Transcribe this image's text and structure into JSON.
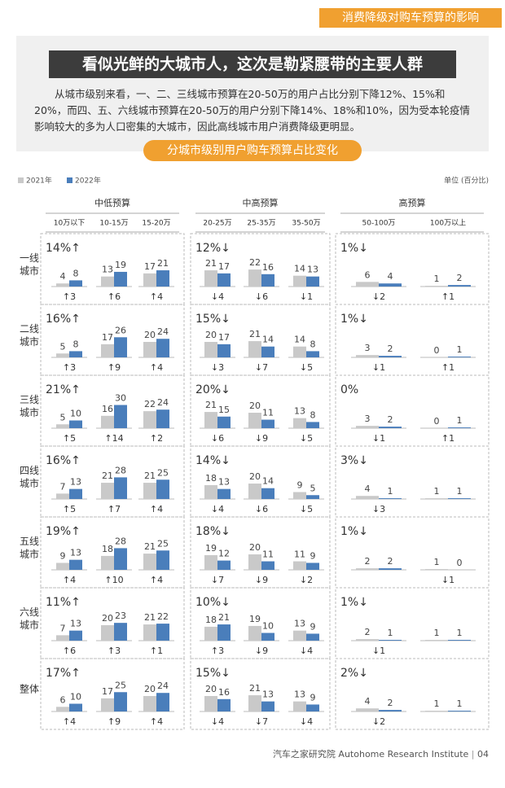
{
  "header": "消费降级对购车预算的影响",
  "title": "看似光鲜的大城市人，这次是勒紧腰带的主要人群",
  "paragraph": "从城市级别来看，一、二、三线城市预算在20-50万的用户占比分别下降12%、15%和20%，而四、五、六线城市预算在20-50万的用户分别下降14%、18%和10%，因为受本轮疫情影响较大的多为人口密集的大城市，因此高线城市用户消费降级更明显。",
  "subtitle": "分城市级别用户购车预算占比变化",
  "legend": [
    {
      "name": "2021年",
      "color": "#c9c9c9"
    },
    {
      "name": "2022年",
      "color": "#4a7ebb"
    }
  ],
  "unit": "单位 (百分比)",
  "groups": [
    {
      "name": "中低预算",
      "categories": [
        "10万以下",
        "10-15万",
        "15-20万"
      ]
    },
    {
      "name": "中高预算",
      "categories": [
        "20-25万",
        "25-35万",
        "35-50万"
      ]
    },
    {
      "name": "高预算",
      "categories": [
        "50-100万",
        "100万以上"
      ]
    }
  ],
  "rows": [
    {
      "label": "一线城市",
      "cells": [
        {
          "total": "14%↑",
          "pairs": [
            {
              "v2021": 4,
              "v2022": 8,
              "change": "↑3"
            },
            {
              "v2021": 13,
              "v2022": 19,
              "change": "↑6"
            },
            {
              "v2021": 17,
              "v2022": 21,
              "change": "↑4"
            }
          ]
        },
        {
          "total": "12%↓",
          "pairs": [
            {
              "v2021": 21,
              "v2022": 17,
              "change": "↓4"
            },
            {
              "v2021": 22,
              "v2022": 16,
              "change": "↓6"
            },
            {
              "v2021": 14,
              "v2022": 13,
              "change": "↓1"
            }
          ]
        },
        {
          "total": "1%↓",
          "pairs": [
            {
              "v2021": 6,
              "v2022": 4,
              "change": "↓2"
            },
            {
              "v2021": 1,
              "v2022": 2,
              "change": "↑1"
            }
          ]
        }
      ]
    },
    {
      "label": "二线城市",
      "cells": [
        {
          "total": "16%↑",
          "pairs": [
            {
              "v2021": 5,
              "v2022": 8,
              "change": "↑3"
            },
            {
              "v2021": 17,
              "v2022": 26,
              "change": "↑9"
            },
            {
              "v2021": 20,
              "v2022": 24,
              "change": "↑4"
            }
          ]
        },
        {
          "total": "15%↓",
          "pairs": [
            {
              "v2021": 20,
              "v2022": 17,
              "change": "↓3"
            },
            {
              "v2021": 21,
              "v2022": 14,
              "change": "↓7"
            },
            {
              "v2021": 14,
              "v2022": 8,
              "change": "↓5"
            }
          ]
        },
        {
          "total": "1%↓",
          "pairs": [
            {
              "v2021": 3,
              "v2022": 2,
              "change": "↓1"
            },
            {
              "v2021": 0,
              "v2022": 1,
              "change": "↑1"
            }
          ]
        }
      ]
    },
    {
      "label": "三线城市",
      "cells": [
        {
          "total": "21%↑",
          "pairs": [
            {
              "v2021": 5,
              "v2022": 10,
              "change": "↑5"
            },
            {
              "v2021": 16,
              "v2022": 30,
              "change": "↑14"
            },
            {
              "v2021": 22,
              "v2022": 24,
              "change": "↑2"
            }
          ]
        },
        {
          "total": "20%↓",
          "pairs": [
            {
              "v2021": 21,
              "v2022": 15,
              "change": "↓6"
            },
            {
              "v2021": 20,
              "v2022": 11,
              "change": "↓9"
            },
            {
              "v2021": 13,
              "v2022": 8,
              "change": "↓5"
            }
          ]
        },
        {
          "total": "0%",
          "pairs": [
            {
              "v2021": 3,
              "v2022": 2,
              "change": "↓1"
            },
            {
              "v2021": 0,
              "v2022": 1,
              "change": "↑1"
            }
          ]
        }
      ]
    },
    {
      "label": "四线城市",
      "cells": [
        {
          "total": "16%↑",
          "pairs": [
            {
              "v2021": 7,
              "v2022": 13,
              "change": "↑5"
            },
            {
              "v2021": 21,
              "v2022": 28,
              "change": "↑7"
            },
            {
              "v2021": 21,
              "v2022": 25,
              "change": "↑4"
            }
          ]
        },
        {
          "total": "14%↓",
          "pairs": [
            {
              "v2021": 18,
              "v2022": 13,
              "change": "↓4"
            },
            {
              "v2021": 20,
              "v2022": 14,
              "change": "↓6"
            },
            {
              "v2021": 9,
              "v2022": 5,
              "change": "↓5"
            }
          ]
        },
        {
          "total": "3%↓",
          "pairs": [
            {
              "v2021": 4,
              "v2022": 1,
              "change": "↓3"
            },
            {
              "v2021": 1,
              "v2022": 1,
              "change": null
            }
          ]
        }
      ]
    },
    {
      "label": "五线城市",
      "cells": [
        {
          "total": "19%↑",
          "pairs": [
            {
              "v2021": 9,
              "v2022": 13,
              "change": "↑4"
            },
            {
              "v2021": 18,
              "v2022": 28,
              "change": "↑10"
            },
            {
              "v2021": 21,
              "v2022": 25,
              "change": "↑4"
            }
          ]
        },
        {
          "total": "18%↓",
          "pairs": [
            {
              "v2021": 19,
              "v2022": 12,
              "change": "↓7"
            },
            {
              "v2021": 20,
              "v2022": 11,
              "change": "↓9"
            },
            {
              "v2021": 11,
              "v2022": 9,
              "change": "↓2"
            }
          ]
        },
        {
          "total": "1%↓",
          "pairs": [
            {
              "v2021": 2,
              "v2022": 2,
              "change": null
            },
            {
              "v2021": 1,
              "v2022": 0,
              "change": "↓1"
            }
          ]
        }
      ]
    },
    {
      "label": "六线城市",
      "cells": [
        {
          "total": "11%↑",
          "pairs": [
            {
              "v2021": 7,
              "v2022": 13,
              "change": "↑6"
            },
            {
              "v2021": 20,
              "v2022": 23,
              "change": "↑3"
            },
            {
              "v2021": 21,
              "v2022": 22,
              "change": "↑1"
            }
          ]
        },
        {
          "total": "10%↓",
          "pairs": [
            {
              "v2021": 18,
              "v2022": 21,
              "change": "↑3"
            },
            {
              "v2021": 19,
              "v2022": 10,
              "change": "↓9"
            },
            {
              "v2021": 13,
              "v2022": 9,
              "change": "↓4"
            }
          ]
        },
        {
          "total": "1%↓",
          "pairs": [
            {
              "v2021": 2,
              "v2022": 1,
              "change": "↓1"
            },
            {
              "v2021": 1,
              "v2022": 1,
              "change": null
            }
          ]
        }
      ]
    },
    {
      "label": "整体",
      "cells": [
        {
          "total": "17%↑",
          "pairs": [
            {
              "v2021": 6,
              "v2022": 10,
              "change": "↑4"
            },
            {
              "v2021": 17,
              "v2022": 25,
              "change": "↑9"
            },
            {
              "v2021": 20,
              "v2022": 24,
              "change": "↑4"
            }
          ]
        },
        {
          "total": "15%↓",
          "pairs": [
            {
              "v2021": 20,
              "v2022": 16,
              "change": "↓4"
            },
            {
              "v2021": 21,
              "v2022": 13,
              "change": "↓7"
            },
            {
              "v2021": 13,
              "v2022": 9,
              "change": "↓4"
            }
          ]
        },
        {
          "total": "2%↓",
          "pairs": [
            {
              "v2021": 4,
              "v2022": 2,
              "change": "↓2"
            },
            {
              "v2021": 1,
              "v2022": 1,
              "change": null
            }
          ]
        }
      ]
    }
  ],
  "footer": {
    "org": "汽车之家研究院  Autohome Research Institute",
    "page": "04"
  }
}
